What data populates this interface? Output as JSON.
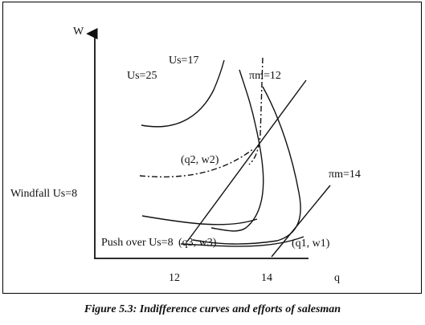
{
  "diagram": {
    "axes": {
      "x_label": "q",
      "y_label": "W",
      "x_ticks": [
        "12",
        "14"
      ]
    },
    "labels": {
      "us25": "Us=25",
      "us17": "Us=17",
      "pim12": "πm=12",
      "pim14": "πm=14",
      "q2w2": "(q2, w2)",
      "windfall": "Windfall Us=8",
      "pushover": "Push over Us=8",
      "q3w3": "(q3, w3)",
      "q1w1": "(q1, w1)"
    }
  },
  "caption": "Figure 5.3: Indifference curves and efforts of salesman"
}
